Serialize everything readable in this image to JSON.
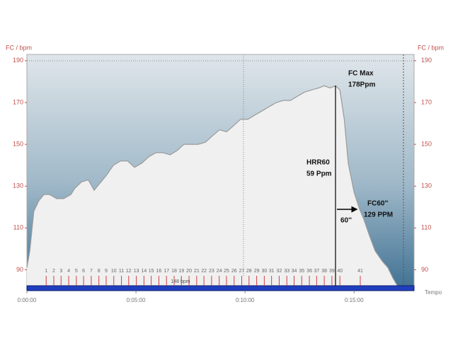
{
  "chart_data": {
    "type": "area",
    "y_label": "FC / bpm",
    "x_label": "Tempo",
    "color": "#9a9a9a",
    "x": [
      0,
      8,
      19,
      33,
      47,
      62,
      82,
      101,
      121,
      132,
      150,
      169,
      185,
      199,
      218,
      238,
      257,
      277,
      296,
      316,
      335,
      355,
      374,
      394,
      413,
      432,
      452,
      471,
      491,
      510,
      530,
      549,
      569,
      588,
      608,
      627,
      647,
      666,
      686,
      705,
      725,
      744,
      764,
      783,
      803,
      818,
      834,
      849,
      861,
      873,
      884,
      900,
      915,
      927,
      943,
      958,
      978,
      993,
      1007,
      1027,
      1046
    ],
    "values": [
      91,
      99,
      118,
      123,
      126,
      126,
      124,
      124,
      126,
      129,
      132,
      133,
      128,
      131,
      135,
      140,
      142,
      142,
      139,
      141,
      144,
      146,
      146,
      145,
      147,
      150,
      150,
      150,
      151,
      154,
      157,
      156,
      159,
      162,
      162,
      164,
      166,
      168,
      170,
      171,
      171,
      173,
      175,
      176,
      177,
      178,
      177,
      178,
      176,
      162,
      141,
      127,
      119,
      114,
      106,
      99,
      94,
      91,
      86,
      80,
      80
    ],
    "xlim": [
      0,
      1065
    ],
    "xticks": [
      {
        "value": 0,
        "label": "0:00:00"
      },
      {
        "value": 300,
        "label": "0:05:00"
      },
      {
        "value": 600,
        "label": "0:10:00"
      },
      {
        "value": 900,
        "label": "0:15:00"
      }
    ],
    "ylim": [
      80,
      193
    ],
    "yticks": [
      90,
      110,
      130,
      150,
      170,
      190
    ],
    "y2lim": [
      80,
      193
    ],
    "y2ticks": [
      90,
      110,
      130,
      150,
      170,
      190
    ],
    "laps": [
      1,
      2,
      3,
      4,
      5,
      6,
      7,
      8,
      9,
      10,
      11,
      12,
      13,
      14,
      15,
      16,
      17,
      18,
      19,
      20,
      21,
      22,
      23,
      24,
      25,
      26,
      27,
      28,
      29,
      30,
      31,
      32,
      33,
      34,
      35,
      36,
      37,
      38,
      39,
      40,
      41
    ],
    "lap_x": [
      53,
      74,
      94,
      115,
      136,
      156,
      177,
      198,
      218,
      239,
      260,
      280,
      301,
      322,
      342,
      363,
      384,
      405,
      425,
      446,
      467,
      487,
      508,
      529,
      549,
      570,
      591,
      611,
      632,
      653,
      673,
      694,
      715,
      735,
      756,
      777,
      797,
      818,
      839,
      861,
      917
    ],
    "bar_label": "148 bpm",
    "annotations": [
      "FC Max",
      "178Ppm",
      "HRR60",
      "59 Ppm",
      "60''",
      "FC60''",
      "129 PPM"
    ]
  }
}
